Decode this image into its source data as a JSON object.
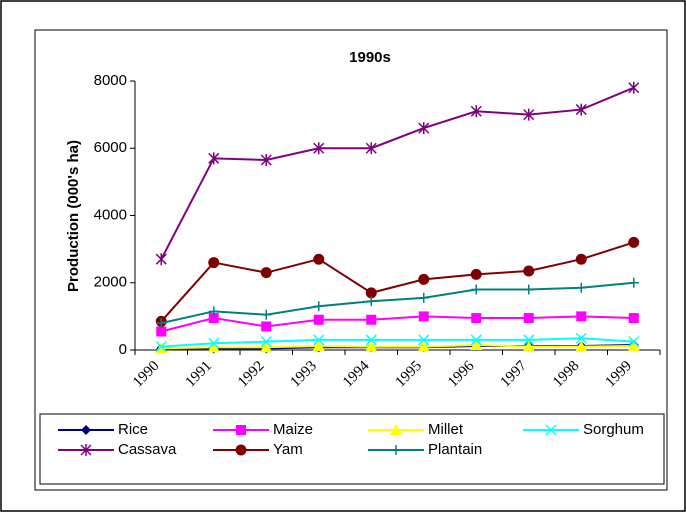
{
  "chart_data": {
    "type": "line",
    "title": "1990s",
    "y_label": "Production (000's ha)",
    "categories": [
      "1990",
      "1991",
      "1992",
      "1993",
      "1994",
      "1995",
      "1996",
      "1997",
      "1998",
      "1999"
    ],
    "ylim": [
      0,
      8000
    ],
    "yticks": [
      0,
      2000,
      4000,
      6000,
      8000
    ],
    "series": [
      {
        "name": "Rice",
        "color": "#000080",
        "marker": "diamond",
        "values": [
          50,
          50,
          50,
          80,
          80,
          80,
          120,
          120,
          120,
          150
        ]
      },
      {
        "name": "Maize",
        "color": "#ff00ff",
        "marker": "square",
        "values": [
          550,
          950,
          700,
          900,
          900,
          1000,
          950,
          950,
          1000,
          950
        ]
      },
      {
        "name": "Millet",
        "color": "#ffff00",
        "marker": "triangle",
        "values": [
          50,
          80,
          80,
          120,
          100,
          100,
          150,
          100,
          100,
          120
        ]
      },
      {
        "name": "Sorghum",
        "color": "#00ffff",
        "marker": "x",
        "values": [
          100,
          200,
          250,
          300,
          300,
          300,
          300,
          300,
          350,
          250
        ]
      },
      {
        "name": "Cassava",
        "color": "#800080",
        "marker": "star",
        "values": [
          2700,
          5700,
          5650,
          6000,
          6000,
          6600,
          7100,
          7000,
          7150,
          7800
        ]
      },
      {
        "name": "Yam",
        "color": "#800000",
        "marker": "circle",
        "values": [
          850,
          2600,
          2300,
          2700,
          1700,
          2100,
          2250,
          2350,
          2700,
          3200
        ]
      },
      {
        "name": "Plantain",
        "color": "#008080",
        "marker": "plus",
        "values": [
          800,
          1150,
          1050,
          1300,
          1450,
          1550,
          1800,
          1800,
          1850,
          2000
        ]
      }
    ]
  }
}
